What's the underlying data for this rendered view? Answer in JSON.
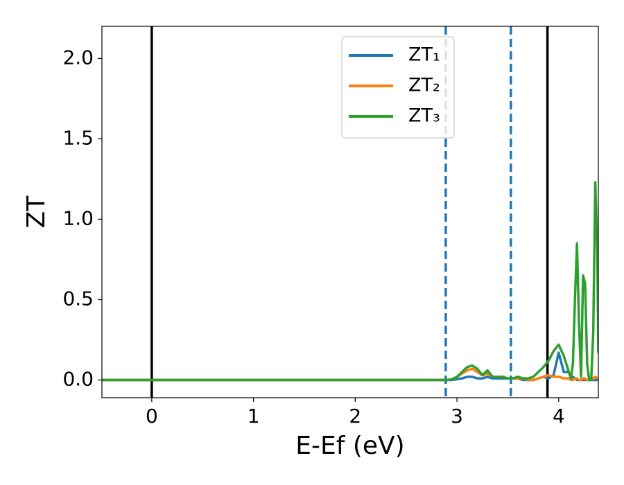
{
  "chart_data": {
    "type": "line",
    "xlabel": "E-Ef (eV)",
    "ylabel": "ZT",
    "xlim": [
      -0.49,
      4.39
    ],
    "ylim": [
      -0.11,
      2.2
    ],
    "xticks": [
      0,
      1,
      2,
      3,
      4
    ],
    "yticks": [
      {
        "value": 0,
        "label": "0.0"
      },
      {
        "value": 0.5,
        "label": "0.5"
      },
      {
        "value": 1,
        "label": "1.0"
      },
      {
        "value": 1.5,
        "label": "1.5"
      },
      {
        "value": 2,
        "label": "2.0"
      }
    ],
    "legend": "upper center",
    "vlines": [
      {
        "x": 0,
        "color": "#000000",
        "style": "solid"
      },
      {
        "x": 3.89,
        "color": "#000000",
        "style": "solid"
      },
      {
        "x": 2.89,
        "color": "#1f77b4",
        "style": "dashed"
      },
      {
        "x": 3.53,
        "color": "#1f77b4",
        "style": "dashed"
      }
    ],
    "x": [
      -0.5,
      2.9,
      2.95,
      3.0,
      3.05,
      3.1,
      3.15,
      3.2,
      3.25,
      3.3,
      3.35,
      3.4,
      3.45,
      3.5,
      3.55,
      3.6,
      3.65,
      3.7,
      3.75,
      3.8,
      3.85,
      3.9,
      3.95,
      4.0,
      4.05,
      4.1,
      4.12,
      4.14,
      4.16,
      4.18,
      4.2,
      4.22,
      4.24,
      4.26,
      4.28,
      4.3,
      4.32,
      4.34,
      4.36,
      4.38,
      4.39
    ],
    "series": [
      {
        "name": "ZT₁",
        "color": "#1f77b4",
        "values": [
          0,
          0,
          0,
          0.005,
          0.01,
          0.02,
          0.02,
          0.01,
          0.01,
          0.02,
          0.01,
          0.01,
          0.01,
          0.01,
          0.01,
          0.01,
          0,
          0,
          0,
          0.01,
          0.02,
          0.01,
          0.03,
          0.17,
          0.05,
          0.05,
          0.01,
          0.02,
          0.01,
          0,
          0,
          0,
          0,
          0,
          0,
          0,
          0,
          0,
          0,
          0,
          0
        ]
      },
      {
        "name": "ZT₂",
        "color": "#ff7f0e",
        "values": [
          0,
          0,
          0.005,
          0.02,
          0.04,
          0.06,
          0.07,
          0.05,
          0.03,
          0.04,
          0.02,
          0.02,
          0.02,
          0.01,
          0.01,
          0.01,
          0.01,
          0,
          0,
          0.01,
          0.02,
          0.03,
          0.02,
          0.02,
          0.01,
          0.01,
          0,
          0,
          0.01,
          0.01,
          0,
          0,
          0.01,
          0.01,
          0,
          0,
          0,
          0.01,
          0.02,
          0.01,
          0.01
        ]
      },
      {
        "name": "ZT₃",
        "color": "#2ca02c",
        "values": [
          0,
          0,
          0.005,
          0.02,
          0.05,
          0.08,
          0.09,
          0.07,
          0.03,
          0.06,
          0.02,
          0.02,
          0.02,
          0.01,
          0.01,
          0.02,
          0.01,
          0.01,
          0.02,
          0.05,
          0.08,
          0.12,
          0.18,
          0.22,
          0.15,
          0.05,
          0.01,
          0.1,
          0.5,
          0.85,
          0.35,
          0.02,
          0.65,
          0.6,
          0.1,
          0,
          0,
          0.3,
          1.23,
          0.8,
          0.17
        ]
      }
    ]
  }
}
